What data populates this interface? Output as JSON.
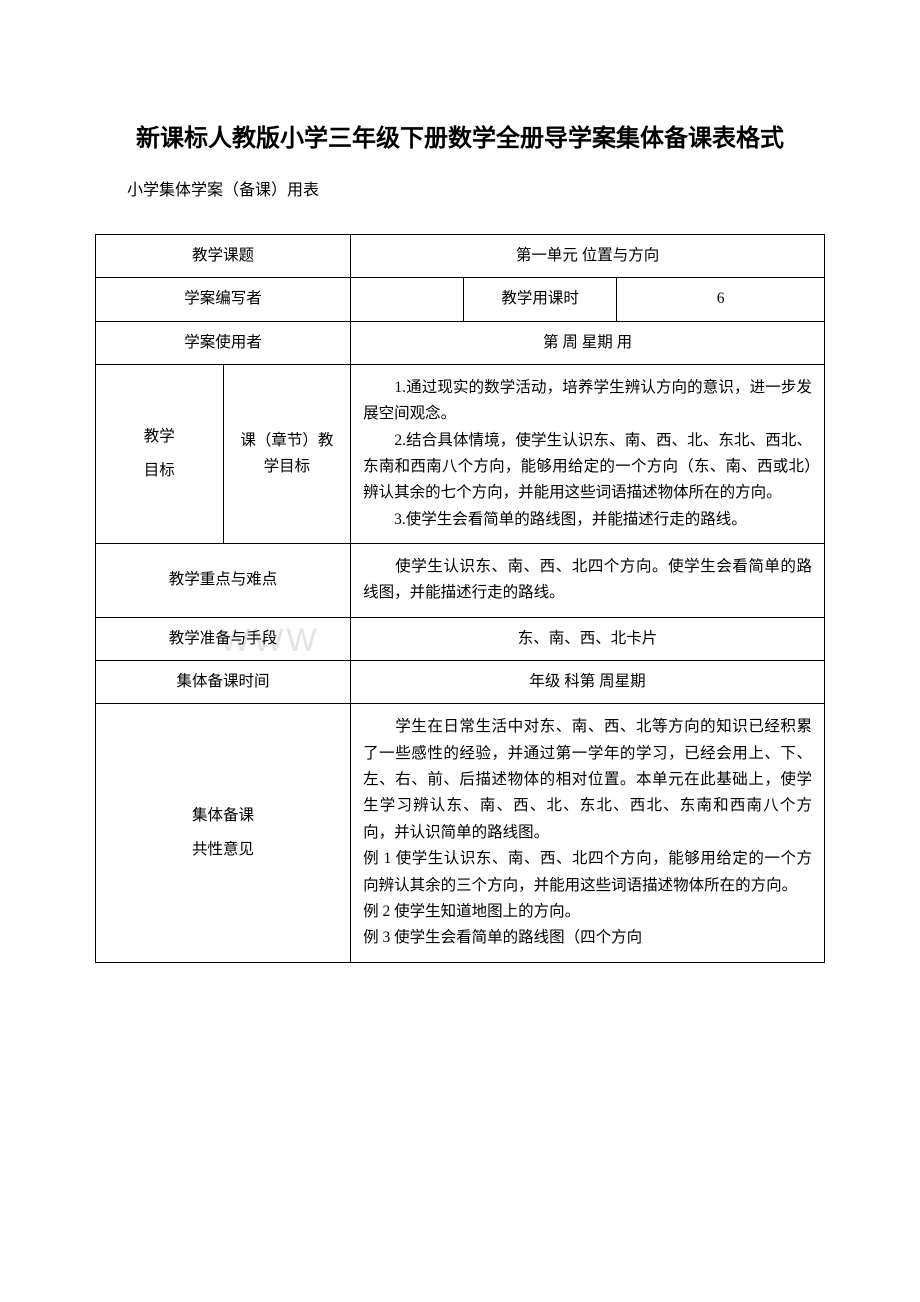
{
  "title": "新课标人教版小学三年级下册数学全册导学案集体备课表格式",
  "subtitle": "小学集体学案（备课）用表",
  "watermark": "WWW",
  "rows": {
    "row1": {
      "label": "教学课题",
      "value": "第一单元 位置与方向"
    },
    "row2": {
      "label": "学案编写者",
      "mid_label": "教学用课时",
      "value": "6"
    },
    "row3": {
      "label": "学案使用者",
      "value": "第 周 星期 用"
    },
    "row4": {
      "label1": "教学",
      "label2": "目标",
      "mid_label": "课（章节）教学目标",
      "content": "　　1.通过现实的数学活动，培养学生辨认方向的意识，进一步发展空间观念。\n　　2.结合具体情境，使学生认识东、南、西、北、东北、西北、东南和西南八个方向，能够用给定的一个方向（东、南、西或北）辨认其余的七个方向，并能用这些词语描述物体所在的方向。\n　　3.使学生会看简单的路线图，并能描述行走的路线。"
    },
    "row5": {
      "label": "教学重点与难点",
      "content": "　　使学生认识东、南、西、北四个方向。使学生会看简单的路线图，并能描述行走的路线。"
    },
    "row6": {
      "label": "教学准备与手段",
      "value": "东、南、西、北卡片"
    },
    "row7": {
      "label": "集体备课时间",
      "value": "年级 科第 周星期"
    },
    "row8": {
      "label1": "集体备课",
      "label2": "共性意见",
      "content": "　　学生在日常生活中对东、南、西、北等方向的知识已经积累了一些感性的经验，并通过第一学年的学习，已经会用上、下、左、右、前、后描述物体的相对位置。本单元在此基础上，使学生学习辨认东、南、西、北、东北、西北、东南和西南八个方向，并认识简单的路线图。\n例 1 使学生认识东、南、西、北四个方向，能够用给定的一个方向辨认其余的三个方向，并能用这些词语描述物体所在的方向。\n例 2 使学生知道地图上的方向。\n例 3 使学生会看简单的路线图（四个方向"
    }
  }
}
